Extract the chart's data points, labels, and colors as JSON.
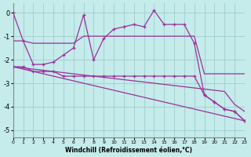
{
  "xlabel": "Windchill (Refroidissement éolien,°C)",
  "xlim": [
    0,
    23
  ],
  "ylim": [
    -5.3,
    0.4
  ],
  "yticks": [
    0,
    -1,
    -2,
    -3,
    -4,
    -5
  ],
  "xticks": [
    0,
    1,
    2,
    3,
    4,
    5,
    6,
    7,
    8,
    9,
    10,
    11,
    12,
    13,
    14,
    15,
    16,
    17,
    18,
    19,
    20,
    21,
    22,
    23
  ],
  "bg_color": "#c5ebeb",
  "grid_color": "#9ecece",
  "line_color": "#993399",
  "hourly_data": [
    0.0,
    -1.2,
    -2.2,
    -2.2,
    -2.1,
    -1.8,
    -1.5,
    -0.1,
    -2.0,
    -1.1,
    -0.7,
    -0.6,
    -0.5,
    -0.6,
    0.1,
    -0.5,
    -0.5,
    -0.5,
    -1.3,
    -3.5,
    -3.8,
    -4.1,
    -4.2,
    -4.6
  ],
  "flat_line": [
    -1.2,
    -1.2,
    -1.3,
    -1.3,
    -1.3,
    -1.3,
    -1.3,
    -1.0,
    -1.0,
    -1.0,
    -1.0,
    -1.0,
    -1.0,
    -1.0,
    -1.0,
    -1.0,
    -1.0,
    -1.0,
    -1.0,
    -2.6,
    -2.6,
    -2.6,
    -2.6,
    -2.6
  ],
  "linear1": [
    -2.3,
    -2.35,
    -2.4,
    -2.45,
    -2.5,
    -2.55,
    -2.6,
    -2.65,
    -2.7,
    -2.75,
    -2.8,
    -2.85,
    -2.9,
    -2.95,
    -3.0,
    -3.05,
    -3.1,
    -3.15,
    -3.2,
    -3.25,
    -3.3,
    -3.35,
    -3.9,
    -4.2
  ],
  "linear2": [
    -2.3,
    -2.4,
    -2.5,
    -2.6,
    -2.7,
    -2.8,
    -2.9,
    -3.0,
    -3.1,
    -3.2,
    -3.3,
    -3.4,
    -3.5,
    -3.6,
    -3.7,
    -3.8,
    -3.9,
    -4.0,
    -4.1,
    -4.2,
    -4.3,
    -4.4,
    -4.5,
    -4.6
  ],
  "lower_jagged": [
    -2.3,
    -2.3,
    -2.5,
    -2.5,
    -2.5,
    -2.7,
    -2.7,
    -2.7,
    -2.7,
    -2.7,
    -2.7,
    -2.7,
    -2.7,
    -2.7,
    -2.7,
    -2.7,
    -2.7,
    -2.7,
    -2.7,
    -3.5,
    -3.8,
    -4.1,
    -4.2,
    -4.6
  ]
}
